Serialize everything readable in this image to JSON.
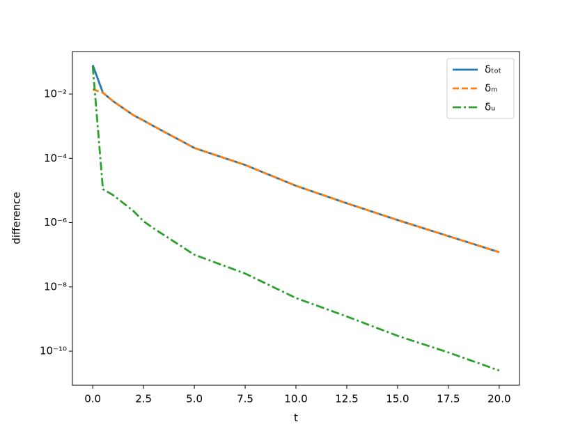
{
  "chart_data": {
    "type": "line",
    "xlabel": "t",
    "ylabel": "difference",
    "x": [
      0,
      0.5,
      1,
      2,
      2.5,
      3,
      5,
      7.5,
      10,
      12.5,
      15,
      17.5,
      20
    ],
    "series": [
      {
        "name": "δₜₒₜ",
        "color": "#1f77b4",
        "linestyle": "solid",
        "values": [
          0.08,
          0.011,
          0.006,
          0.0022,
          0.0015,
          0.001,
          0.00021,
          6.2e-05,
          1.4e-05,
          4e-06,
          1.2e-06,
          3.8e-07,
          1.2e-07
        ]
      },
      {
        "name": "δₘ",
        "color": "#ff7f0e",
        "linestyle": "dashed",
        "values": [
          0.014,
          0.011,
          0.006,
          0.0022,
          0.0015,
          0.001,
          0.00021,
          6.2e-05,
          1.4e-05,
          4e-06,
          1.2e-06,
          3.8e-07,
          1.2e-07
        ]
      },
      {
        "name": "δᵤ",
        "color": "#2ca02c",
        "linestyle": "dashdot",
        "values": [
          0.074,
          1.1e-05,
          7.2e-06,
          2.3e-06,
          1.1e-06,
          6.6e-07,
          1e-07,
          2.6e-08,
          4.5e-09,
          1.2e-09,
          3e-10,
          9.1e-11,
          2.5e-11
        ]
      }
    ],
    "xlim": [
      -1,
      21
    ],
    "xticks": [
      {
        "value": 0,
        "label": "0.0"
      },
      2.5,
      {
        "value": 5,
        "label": "5.0"
      },
      7.5,
      {
        "value": 10,
        "label": "10.0"
      },
      12.5,
      {
        "value": 15,
        "label": "15.0"
      },
      17.5,
      {
        "value": 20,
        "label": "20.0"
      }
    ],
    "ylim": [
      0.21,
      8.7e-12
    ],
    "yscale": "log",
    "yticks": [
      {
        "value": 0.01,
        "label": "10⁻²"
      },
      {
        "value": 0.0001,
        "label": "10⁻⁴"
      },
      {
        "value": 1e-06,
        "label": "10⁻⁶"
      },
      {
        "value": 1e-08,
        "label": "10⁻⁸"
      },
      {
        "value": 1e-10,
        "label": "10⁻¹⁰"
      }
    ],
    "grid": false,
    "legend": "upper right"
  }
}
